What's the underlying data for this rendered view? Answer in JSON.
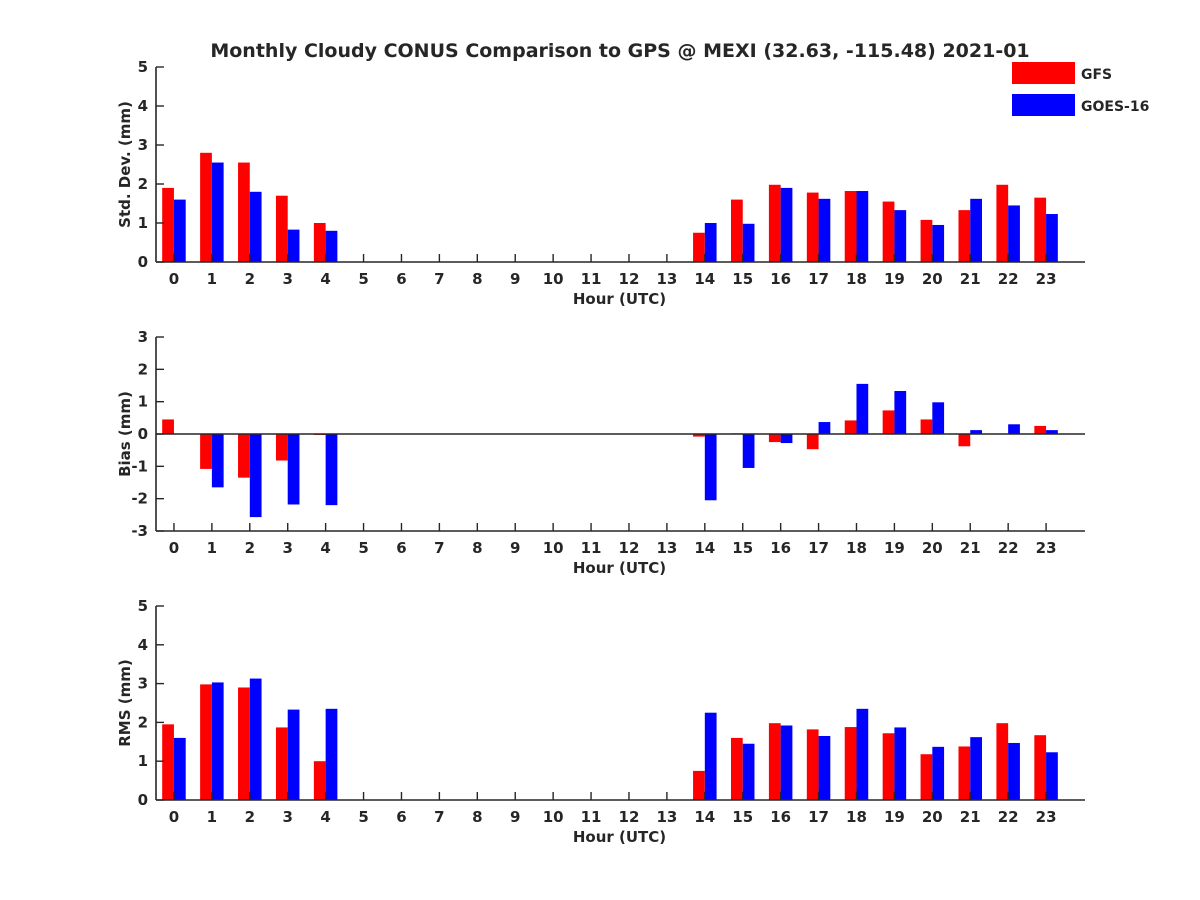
{
  "title": "Monthly Cloudy CONUS Comparison to GPS @ MEXI (32.63, -115.48) 2021-01",
  "legend": {
    "placement": "top-right",
    "entries": [
      {
        "name": "GFS",
        "color": "#ff0000"
      },
      {
        "name": "GOES-16",
        "color": "#0000ff"
      }
    ]
  },
  "chart_data": [
    {
      "type": "bar",
      "ylabel": "Std. Dev. (mm)",
      "xlabel": "Hour (UTC)",
      "ylim": [
        0,
        5
      ],
      "yticks": [
        0,
        1,
        2,
        3,
        4,
        5
      ],
      "categories": [
        "0",
        "1",
        "2",
        "3",
        "4",
        "5",
        "6",
        "7",
        "8",
        "9",
        "10",
        "11",
        "12",
        "13",
        "14",
        "15",
        "16",
        "17",
        "18",
        "19",
        "20",
        "21",
        "22",
        "23"
      ],
      "series": [
        {
          "name": "GFS",
          "color": "#ff0000",
          "values": [
            1.9,
            2.8,
            2.55,
            1.7,
            1.0,
            null,
            null,
            null,
            null,
            null,
            null,
            null,
            null,
            null,
            0.75,
            1.6,
            1.98,
            1.78,
            1.82,
            1.55,
            1.08,
            1.33,
            1.98,
            1.65
          ]
        },
        {
          "name": "GOES-16",
          "color": "#0000ff",
          "values": [
            1.6,
            2.55,
            1.8,
            0.83,
            0.8,
            null,
            null,
            null,
            null,
            null,
            null,
            null,
            null,
            null,
            1.0,
            0.98,
            1.9,
            1.62,
            1.82,
            1.33,
            0.95,
            1.62,
            1.45,
            1.23
          ]
        }
      ]
    },
    {
      "type": "bar",
      "ylabel": "Bias (mm)",
      "xlabel": "Hour (UTC)",
      "ylim": [
        -3,
        3
      ],
      "yticks": [
        -3,
        -2,
        -1,
        0,
        1,
        2,
        3
      ],
      "categories": [
        "0",
        "1",
        "2",
        "3",
        "4",
        "5",
        "6",
        "7",
        "8",
        "9",
        "10",
        "11",
        "12",
        "13",
        "14",
        "15",
        "16",
        "17",
        "18",
        "19",
        "20",
        "21",
        "22",
        "23"
      ],
      "series": [
        {
          "name": "GFS",
          "color": "#ff0000",
          "values": [
            0.45,
            -1.08,
            -1.35,
            -0.82,
            -0.03,
            null,
            null,
            null,
            null,
            null,
            null,
            null,
            null,
            null,
            -0.08,
            0.02,
            -0.25,
            -0.47,
            0.42,
            0.73,
            0.45,
            -0.38,
            0.0,
            0.25
          ]
        },
        {
          "name": "GOES-16",
          "color": "#0000ff",
          "values": [
            0.0,
            -1.65,
            -2.57,
            -2.18,
            -2.2,
            null,
            null,
            null,
            null,
            null,
            null,
            null,
            null,
            null,
            -2.05,
            -1.05,
            -0.28,
            0.37,
            1.55,
            1.33,
            0.98,
            0.12,
            0.3,
            0.12
          ]
        }
      ]
    },
    {
      "type": "bar",
      "ylabel": "RMS (mm)",
      "xlabel": "Hour (UTC)",
      "ylim": [
        0,
        5
      ],
      "yticks": [
        0,
        1,
        2,
        3,
        4,
        5
      ],
      "categories": [
        "0",
        "1",
        "2",
        "3",
        "4",
        "5",
        "6",
        "7",
        "8",
        "9",
        "10",
        "11",
        "12",
        "13",
        "14",
        "15",
        "16",
        "17",
        "18",
        "19",
        "20",
        "21",
        "22",
        "23"
      ],
      "series": [
        {
          "name": "GFS",
          "color": "#ff0000",
          "values": [
            1.95,
            2.98,
            2.9,
            1.87,
            1.0,
            null,
            null,
            null,
            null,
            null,
            null,
            null,
            null,
            null,
            0.75,
            1.6,
            1.98,
            1.82,
            1.88,
            1.72,
            1.18,
            1.38,
            1.98,
            1.67
          ]
        },
        {
          "name": "GOES-16",
          "color": "#0000ff",
          "values": [
            1.6,
            3.03,
            3.13,
            2.33,
            2.35,
            null,
            null,
            null,
            null,
            null,
            null,
            null,
            null,
            null,
            2.25,
            1.45,
            1.92,
            1.65,
            2.35,
            1.87,
            1.37,
            1.62,
            1.47,
            1.23
          ]
        }
      ]
    }
  ]
}
